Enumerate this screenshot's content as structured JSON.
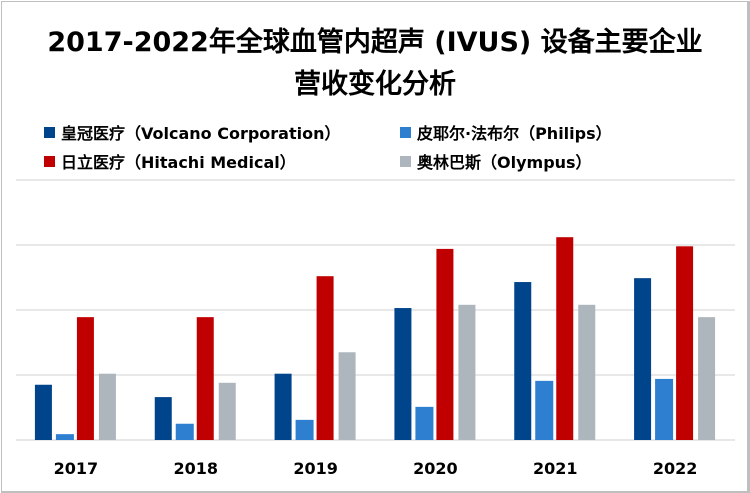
{
  "title_line1": "2017-2022年全球血管内超声 (IVUS) 设备主要企业",
  "title_line2": "营收变化分析",
  "chart_data": {
    "type": "bar",
    "categories": [
      "2017",
      "2018",
      "2019",
      "2020",
      "2021",
      "2022"
    ],
    "series": [
      {
        "name": "皇冠医疗（Volcano Corporation）",
        "color": "#00448c",
        "values": [
          0.85,
          0.66,
          1.02,
          2.03,
          2.43,
          2.49
        ]
      },
      {
        "name": "皮耶尔·法布尔（Philips）",
        "color": "#2e7fd0",
        "values": [
          0.09,
          0.25,
          0.31,
          0.51,
          0.91,
          0.94
        ]
      },
      {
        "name": "日立医疗（Hitachi Medical）",
        "color": "#c00000",
        "values": [
          1.89,
          1.89,
          2.52,
          2.94,
          3.12,
          2.98
        ]
      },
      {
        "name": "奥林巴斯（Olympus）",
        "color": "#adb5bd",
        "values": [
          1.02,
          0.88,
          1.35,
          2.08,
          2.08,
          1.89
        ]
      }
    ],
    "ylim": [
      0,
      4
    ],
    "y_axis_labels_shown": false,
    "grid": true,
    "legend": "top",
    "xlabel": "",
    "ylabel": ""
  }
}
